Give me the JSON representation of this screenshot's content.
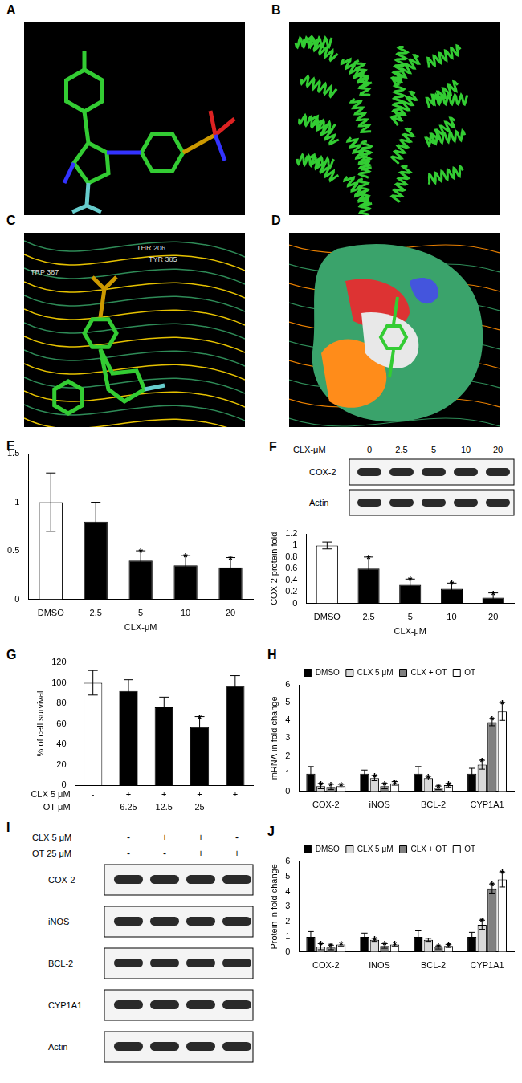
{
  "images": [
    {
      "panel": "A"
    },
    {
      "panel": "B"
    },
    {
      "panel": "C",
      "residue_labels": [
        "THR 206",
        "TYR 385",
        "TRP 387"
      ]
    },
    {
      "panel": "D"
    }
  ],
  "blots": [
    {
      "panel": "F",
      "header": "CLX-μM",
      "lanes": [
        "0",
        "2.5",
        "5",
        "10",
        "20"
      ],
      "rows": [
        "COX-2",
        "Actin"
      ]
    },
    {
      "panel": "I",
      "conditions": [
        {
          "name": "CLX 5 μM",
          "lanes": [
            "-",
            "+",
            "+",
            "-"
          ]
        },
        {
          "name": "OT 25 μM",
          "lanes": [
            "-",
            "-",
            "+",
            "+"
          ]
        }
      ],
      "rows": [
        "COX-2",
        "iNOS",
        "BCL-2",
        "CYP1A1",
        "Actin"
      ]
    }
  ],
  "chart_data": [
    {
      "panel": "E",
      "type": "bar",
      "categories": [
        "DMSO",
        "2.5",
        "5",
        "10",
        "20"
      ],
      "values": [
        1.0,
        0.8,
        0.4,
        0.35,
        0.33
      ],
      "errors": [
        0.3,
        0.2,
        0.1,
        0.1,
        0.1
      ],
      "annotations": [
        null,
        null,
        "*",
        "*",
        "*"
      ],
      "colors": [
        "#ffffff",
        "#000000",
        "#000000",
        "#000000",
        "#000000"
      ],
      "x_label": "CLX-μM",
      "ylim": [
        0,
        1.5
      ],
      "yticks": [
        0,
        0.5,
        1,
        1.5
      ],
      "grid": false
    },
    {
      "type": "bar",
      "categories": [
        "DMSO",
        "2.5",
        "5",
        "10",
        "20"
      ],
      "values": [
        1.0,
        0.6,
        0.32,
        0.25,
        0.1
      ],
      "errors": [
        0.06,
        0.2,
        0.1,
        0.1,
        0.08
      ],
      "annotations": [
        null,
        "*",
        "*",
        "*",
        "*"
      ],
      "colors": [
        "#ffffff",
        "#000000",
        "#000000",
        "#000000",
        "#000000"
      ],
      "x_label": "CLX-μM",
      "y_label": "COX-2 protein fold",
      "ylim": [
        0,
        1.2
      ],
      "yticks": [
        0,
        0.2,
        0.4,
        0.6,
        0.8,
        1,
        1.2
      ],
      "grid": false
    },
    {
      "panel": "G",
      "type": "bar",
      "x_rows": [
        {
          "name": "CLX 5 μM",
          "labels": [
            "-",
            "+",
            "+",
            "+",
            "+"
          ]
        },
        {
          "name": "OT μM",
          "labels": [
            "-",
            "6.25",
            "12.5",
            "25",
            "-"
          ]
        }
      ],
      "values": [
        100,
        92,
        76,
        57,
        97
      ],
      "errors": [
        12,
        11,
        10,
        10,
        10
      ],
      "annotations": [
        null,
        null,
        null,
        "*",
        null
      ],
      "colors": [
        "#ffffff",
        "#000000",
        "#000000",
        "#000000",
        "#000000"
      ],
      "y_label": "% of cell survival",
      "ylim": [
        0,
        120
      ],
      "yticks": [
        0,
        20,
        40,
        60,
        80,
        100,
        120
      ],
      "grid": false
    },
    {
      "panel": "H",
      "type": "bar",
      "categories": [
        "COX-2",
        "iNOS",
        "BCL-2",
        "CYP1A1"
      ],
      "series": [
        {
          "name": "DMSO",
          "color": "#000000",
          "values": [
            1,
            1,
            1,
            1
          ],
          "errors": [
            0.4,
            0.2,
            0.4,
            0.3
          ]
        },
        {
          "name": "CLX 5 μM",
          "color": "#d9d9d9",
          "values": [
            0.3,
            0.75,
            0.75,
            1.5
          ],
          "errors": [
            0.15,
            0.15,
            0.1,
            0.25
          ],
          "annotations": [
            "*",
            "*",
            "*",
            "*"
          ]
        },
        {
          "name": "CLX + OT",
          "color": "#808080",
          "values": [
            0.25,
            0.3,
            0.2,
            3.9
          ],
          "errors": [
            0.15,
            0.15,
            0.1,
            0.2
          ],
          "annotations": [
            "*",
            "*",
            "*",
            "*"
          ]
        },
        {
          "name": "OT",
          "color": "#ffffff",
          "values": [
            0.3,
            0.45,
            0.35,
            4.5
          ],
          "errors": [
            0.1,
            0.1,
            0.1,
            0.5
          ],
          "annotations": [
            "*",
            "*",
            "*",
            "*"
          ]
        }
      ],
      "y_label": "mRNA in fold change",
      "ylim": [
        0,
        6
      ],
      "yticks": [
        0,
        1,
        2,
        3,
        4,
        5,
        6
      ],
      "grid": false,
      "legend": "top"
    },
    {
      "panel": "J",
      "type": "bar",
      "categories": [
        "COX-2",
        "iNOS",
        "BCL-2",
        "CYP1A1"
      ],
      "series": [
        {
          "name": "DMSO",
          "color": "#000000",
          "values": [
            1,
            1,
            1,
            1
          ],
          "errors": [
            0.35,
            0.25,
            0.4,
            0.3
          ]
        },
        {
          "name": "CLX 5 μM",
          "color": "#d9d9d9",
          "values": [
            0.35,
            0.8,
            0.8,
            1.8
          ],
          "errors": [
            0.2,
            0.1,
            0.1,
            0.3
          ],
          "annotations": [
            "*",
            "*",
            null,
            "*"
          ]
        },
        {
          "name": "CLX + OT",
          "color": "#808080",
          "values": [
            0.3,
            0.4,
            0.3,
            4.2
          ],
          "errors": [
            0.15,
            0.15,
            0.1,
            0.3
          ],
          "annotations": [
            "*",
            "*",
            "*",
            "*"
          ]
        },
        {
          "name": "OT",
          "color": "#ffffff",
          "values": [
            0.5,
            0.5,
            0.4,
            4.8
          ],
          "errors": [
            0.1,
            0.1,
            0.1,
            0.5
          ],
          "annotations": [
            "*",
            "*",
            "*",
            "*"
          ]
        }
      ],
      "y_label": "Protein in fold change",
      "ylim": [
        0,
        6
      ],
      "yticks": [
        0,
        1,
        2,
        3,
        4,
        5,
        6
      ],
      "grid": false,
      "legend": "top"
    }
  ]
}
